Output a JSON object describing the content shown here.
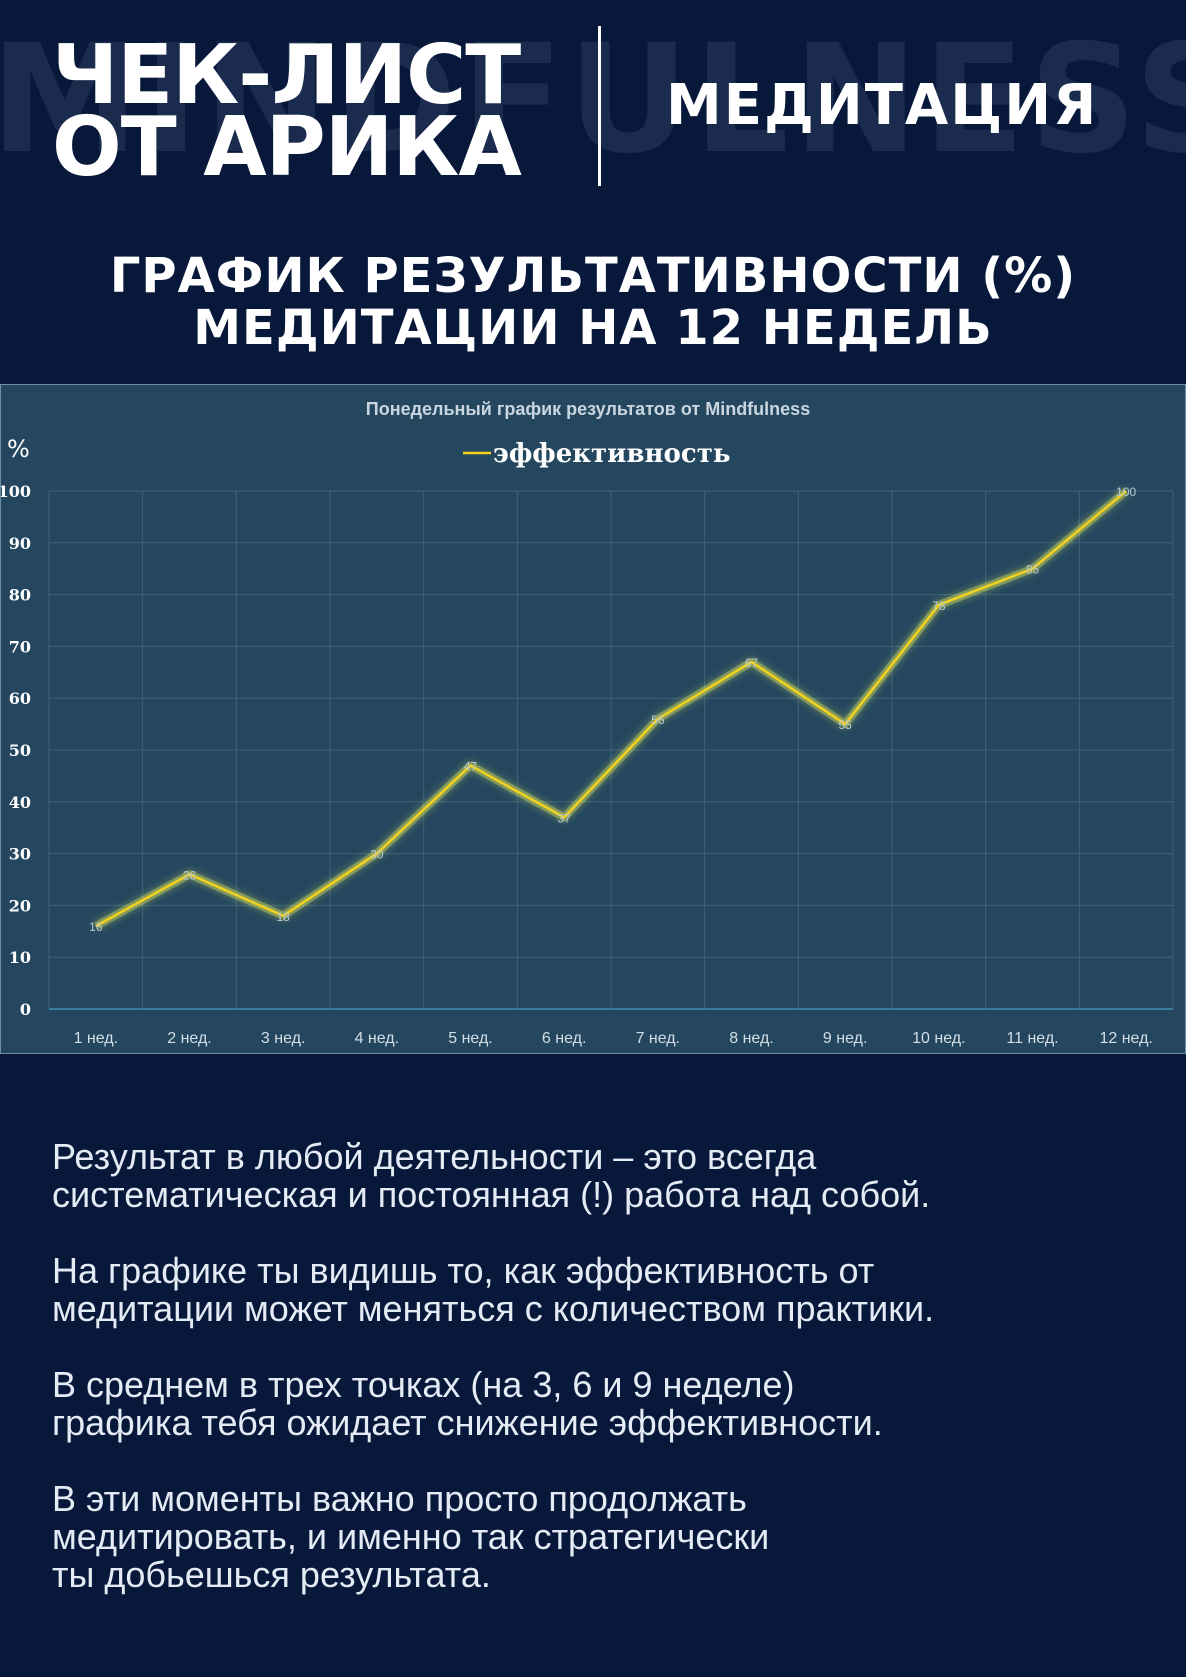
{
  "header": {
    "watermark": "MINDFULNESS",
    "brand_line1": "ЧЕК-ЛИСТ",
    "brand_line2": "ОТ АРИКА",
    "section": "МЕДИТАЦИЯ"
  },
  "title": {
    "line1": "ГРАФИК РЕЗУЛЬТАТИВНОСТИ (%)",
    "line2": "МЕДИТАЦИИ НА 12 НЕДЕЛЬ"
  },
  "chart_data": {
    "type": "line",
    "title": "Понедельный график результатов от Mindfulness",
    "ylabel": "%",
    "xlabel": "",
    "legend": "top-center",
    "grid": true,
    "ylim": [
      0,
      100
    ],
    "yticks": [
      "0",
      "10",
      "20",
      "30",
      "40",
      "50",
      "60",
      "70",
      "80",
      "90",
      "100"
    ],
    "categories": [
      "1 нед.",
      "2 нед.",
      "3 нед.",
      "4 нед.",
      "5 нед.",
      "6 нед.",
      "7 нед.",
      "8 нед.",
      "9 нед.",
      "10 нед.",
      "11 нед.",
      "12 нед."
    ],
    "series": [
      {
        "name": "эффективность",
        "color": "#f2d21e",
        "values": [
          16,
          26,
          18,
          30,
          47,
          37,
          56,
          67,
          55,
          78,
          85,
          100
        ]
      }
    ]
  },
  "body": [
    [
      "Результат в любой деятельности – это всегда",
      "систематическая и постоянная (!) работа над собой."
    ],
    [
      "На графике ты видишь то, как эффективность от",
      "медитации может меняться с количеством практики."
    ],
    [
      "В среднем в трех точках (на 3, 6 и 9 неделе)",
      "графика тебя ожидает снижение эффективности."
    ],
    [
      "В эти моменты важно просто продолжать",
      "медитировать, и именно так стратегически",
      "ты добьешься результата."
    ]
  ],
  "colors": {
    "background": "#07183a",
    "chart_background": "#24475f",
    "line": "#f2d21e"
  }
}
